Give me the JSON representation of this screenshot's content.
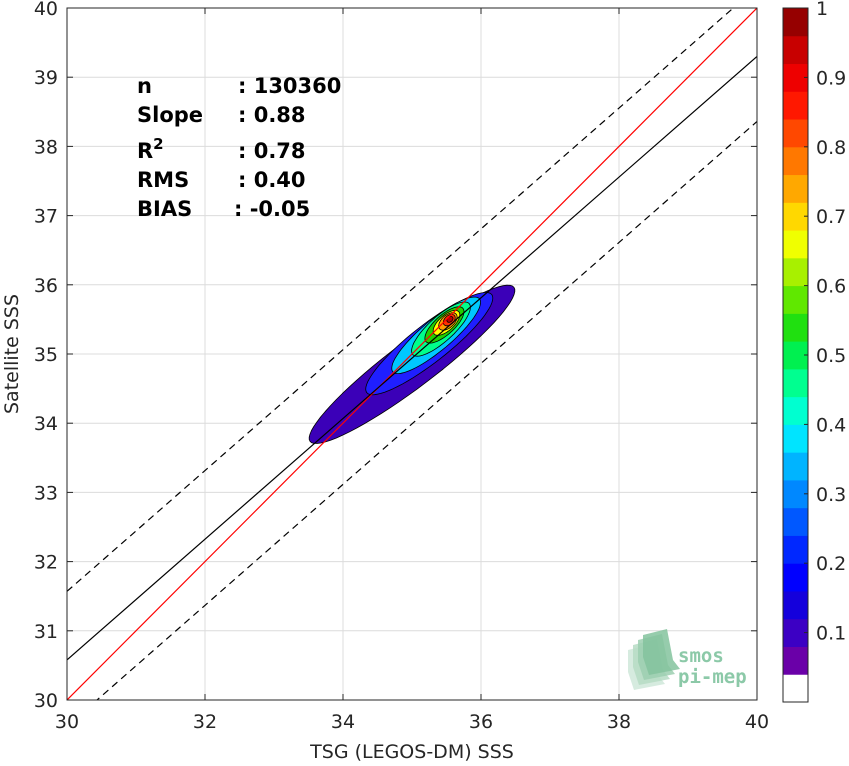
{
  "chart_data": {
    "type": "heatmap",
    "subtype": "normalized density contour with regression lines",
    "xlabel": "TSG (LEGOS-DM) SSS",
    "ylabel": "Satellite SSS",
    "xlim": [
      30,
      40
    ],
    "ylim": [
      30,
      40
    ],
    "xticks": [
      "30",
      "32",
      "34",
      "36",
      "38",
      "40"
    ],
    "yticks": [
      "30",
      "31",
      "32",
      "33",
      "34",
      "35",
      "36",
      "37",
      "38",
      "39",
      "40"
    ],
    "grid": true,
    "stats": [
      {
        "label": "n",
        "value": ": 130360"
      },
      {
        "label": "Slope",
        "value": ": 0.88"
      },
      {
        "label": "R",
        "sup": "2",
        "value": ": 0.78"
      },
      {
        "label": "RMS",
        "value": ": 0.40"
      },
      {
        "label": "BIAS",
        "value": ": -0.05"
      }
    ],
    "lines": [
      {
        "name": "one-to-one",
        "style": "solid",
        "color": "#ff0000",
        "x": [
          30,
          40
        ],
        "y": [
          30,
          40
        ]
      },
      {
        "name": "regression",
        "style": "solid",
        "color": "#000000",
        "x": [
          30,
          40
        ],
        "y": [
          30.58,
          39.3
        ]
      },
      {
        "name": "upper-bound",
        "style": "dashed",
        "color": "#000000",
        "x": [
          30,
          40
        ],
        "y": [
          31.57,
          40.3
        ]
      },
      {
        "name": "lower-bound",
        "style": "dashed",
        "color": "#000000",
        "x": [
          30,
          40
        ],
        "y": [
          29.62,
          38.36
        ]
      }
    ],
    "density_peak": {
      "x": 35.55,
      "y": 35.5
    },
    "density_contours": [
      {
        "level": 0.05,
        "color": "#3b00b8",
        "cx": 35.0,
        "cy": 34.85,
        "major": 1.85,
        "minor": 0.33,
        "angle_deg": 37
      },
      {
        "level": 0.1,
        "color": "#1f1fff",
        "cx": 35.25,
        "cy": 35.15,
        "major": 1.15,
        "minor": 0.27,
        "angle_deg": 38
      },
      {
        "level": 0.3,
        "color": "#00c8ff",
        "cx": 35.35,
        "cy": 35.27,
        "major": 0.82,
        "minor": 0.22,
        "angle_deg": 40
      },
      {
        "level": 0.4,
        "color": "#00ff8c",
        "cx": 35.42,
        "cy": 35.36,
        "major": 0.55,
        "minor": 0.18,
        "angle_deg": 42
      },
      {
        "level": 0.5,
        "color": "#20d000",
        "cx": 35.47,
        "cy": 35.42,
        "major": 0.36,
        "minor": 0.14,
        "angle_deg": 42
      },
      {
        "level": 0.65,
        "color": "#ffff00",
        "cx": 35.5,
        "cy": 35.45,
        "major": 0.24,
        "minor": 0.11,
        "angle_deg": 42
      },
      {
        "level": 0.75,
        "color": "#ff9a00",
        "cx": 35.52,
        "cy": 35.47,
        "major": 0.16,
        "minor": 0.09,
        "angle_deg": 42
      },
      {
        "level": 0.85,
        "color": "#ff3000",
        "cx": 35.54,
        "cy": 35.49,
        "major": 0.1,
        "minor": 0.065,
        "angle_deg": 42
      },
      {
        "level": 0.95,
        "color": "#b80000",
        "cx": 35.55,
        "cy": 35.5,
        "major": 0.05,
        "minor": 0.035,
        "angle_deg": 42
      }
    ],
    "colorbar": {
      "colors": [
        "#ffffff",
        "#6a00a8",
        "#3c00c4",
        "#1400dc",
        "#0000ff",
        "#0028ff",
        "#0058ff",
        "#0088ff",
        "#00b4ff",
        "#00e4ff",
        "#00ffd0",
        "#00ff90",
        "#00f050",
        "#20e010",
        "#60e800",
        "#a8f000",
        "#f0ff00",
        "#ffd800",
        "#ffa800",
        "#ff7800",
        "#ff4800",
        "#ff1800",
        "#ee0000",
        "#c80000",
        "#960000"
      ],
      "ticks": [
        "0.1",
        "0.2",
        "0.3",
        "0.4",
        "0.5",
        "0.6",
        "0.7",
        "0.8",
        "0.9",
        "1"
      ],
      "tick_values": [
        0.1,
        0.2,
        0.3,
        0.4,
        0.5,
        0.6,
        0.7,
        0.8,
        0.9,
        1.0
      ],
      "range": [
        0,
        1
      ]
    },
    "logo": {
      "line1": "smos",
      "line2": "pi-mep"
    }
  }
}
